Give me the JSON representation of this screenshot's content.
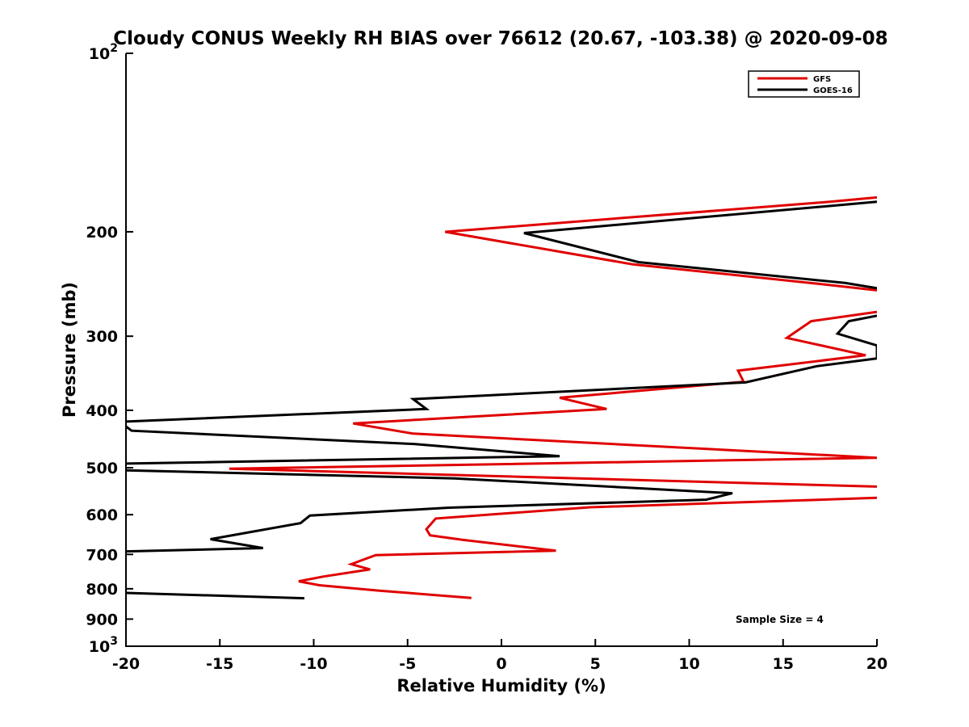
{
  "chart_data": {
    "type": "line",
    "title": "Cloudy CONUS Weekly RH BIAS over 76612 (20.67, -103.38) @ 2020-09-08",
    "xlabel": "Relative Humidity (%)",
    "ylabel": "Pressure (mb)",
    "xlim": [
      -20,
      20
    ],
    "ylim": [
      100,
      1000
    ],
    "yscale": "log",
    "ydirection": "reversed",
    "grid": false,
    "legend_position": "top-right",
    "x_ticks": [
      -20,
      -15,
      -10,
      -5,
      0,
      5,
      10,
      15,
      20
    ],
    "x_tick_labels": [
      "-20",
      "-15",
      "-10",
      "-5",
      "0",
      "5",
      "10",
      "15",
      "20"
    ],
    "y_ticks": [
      200,
      300,
      400,
      500,
      600,
      700,
      800,
      900
    ],
    "y_tick_labels": [
      "200",
      "300",
      "400",
      "500",
      "600",
      "700",
      "800",
      "900"
    ],
    "y_decade_ticks": [
      100,
      1000
    ],
    "y_decade_base": [
      "10",
      "10"
    ],
    "y_decade_exp": [
      "2",
      "3"
    ],
    "series": [
      {
        "name": "GFS",
        "color": "#e00000",
        "points": [
          [
            20,
            175
          ],
          [
            17.5,
            178
          ],
          [
            -3,
            200
          ],
          [
            7,
            227
          ],
          [
            17,
            245
          ],
          [
            20,
            251
          ],
          [
            null,
            null
          ],
          [
            20,
            273
          ],
          [
            16.5,
            283
          ],
          [
            15.2,
            302
          ],
          [
            19.4,
            323
          ],
          [
            12.6,
            343
          ],
          [
            12.9,
            358
          ],
          [
            3.1,
            381
          ],
          [
            5.6,
            398
          ],
          [
            -7.9,
            421
          ],
          [
            -4.7,
            438
          ],
          [
            20,
            481
          ],
          [
            -14.5,
            502
          ],
          [
            20,
            538
          ],
          [
            null,
            null
          ],
          [
            20,
            562
          ],
          [
            4.7,
            583
          ],
          [
            -3.5,
            609
          ],
          [
            -4,
            635
          ],
          [
            -3.8,
            650
          ],
          [
            -2,
            662
          ],
          [
            2.9,
            690
          ],
          [
            -6.7,
            702
          ],
          [
            -8,
            727
          ],
          [
            -7,
            742
          ],
          [
            -9.5,
            763
          ],
          [
            -10.8,
            777
          ],
          [
            -9.7,
            789
          ],
          [
            -6.5,
            806
          ],
          [
            -1.6,
            829
          ]
        ]
      },
      {
        "name": "GOES-16",
        "color": "#000000",
        "points": [
          [
            20,
            178
          ],
          [
            1.2,
            201
          ],
          [
            7.3,
            225
          ],
          [
            18.3,
            244
          ],
          [
            20,
            249
          ],
          [
            null,
            null
          ],
          [
            20,
            277
          ],
          [
            18.5,
            283
          ],
          [
            17.9,
            297
          ],
          [
            20,
            311
          ],
          [
            20,
            327
          ],
          [
            16.8,
            337
          ],
          [
            13,
            359
          ],
          [
            -4.7,
            383
          ],
          [
            -4,
            398
          ],
          [
            -20,
            418
          ],
          [
            null,
            null
          ],
          [
            -20,
            426
          ],
          [
            -19.7,
            433
          ],
          [
            -4.6,
            456
          ],
          [
            3.1,
            478
          ],
          [
            -20,
            492
          ],
          [
            null,
            null
          ],
          [
            -20,
            505
          ],
          [
            -2.5,
            521
          ],
          [
            12.3,
            552
          ],
          [
            10.9,
            566
          ],
          [
            -2.8,
            584
          ],
          [
            -10.2,
            602
          ],
          [
            -10.7,
            620
          ],
          [
            -15.5,
            660
          ],
          [
            -12.7,
            683
          ],
          [
            -20,
            692
          ],
          [
            null,
            null
          ],
          [
            -20,
            813
          ],
          [
            -10.5,
            830
          ]
        ]
      }
    ],
    "annotations": [
      "Sample Size = 4"
    ]
  }
}
